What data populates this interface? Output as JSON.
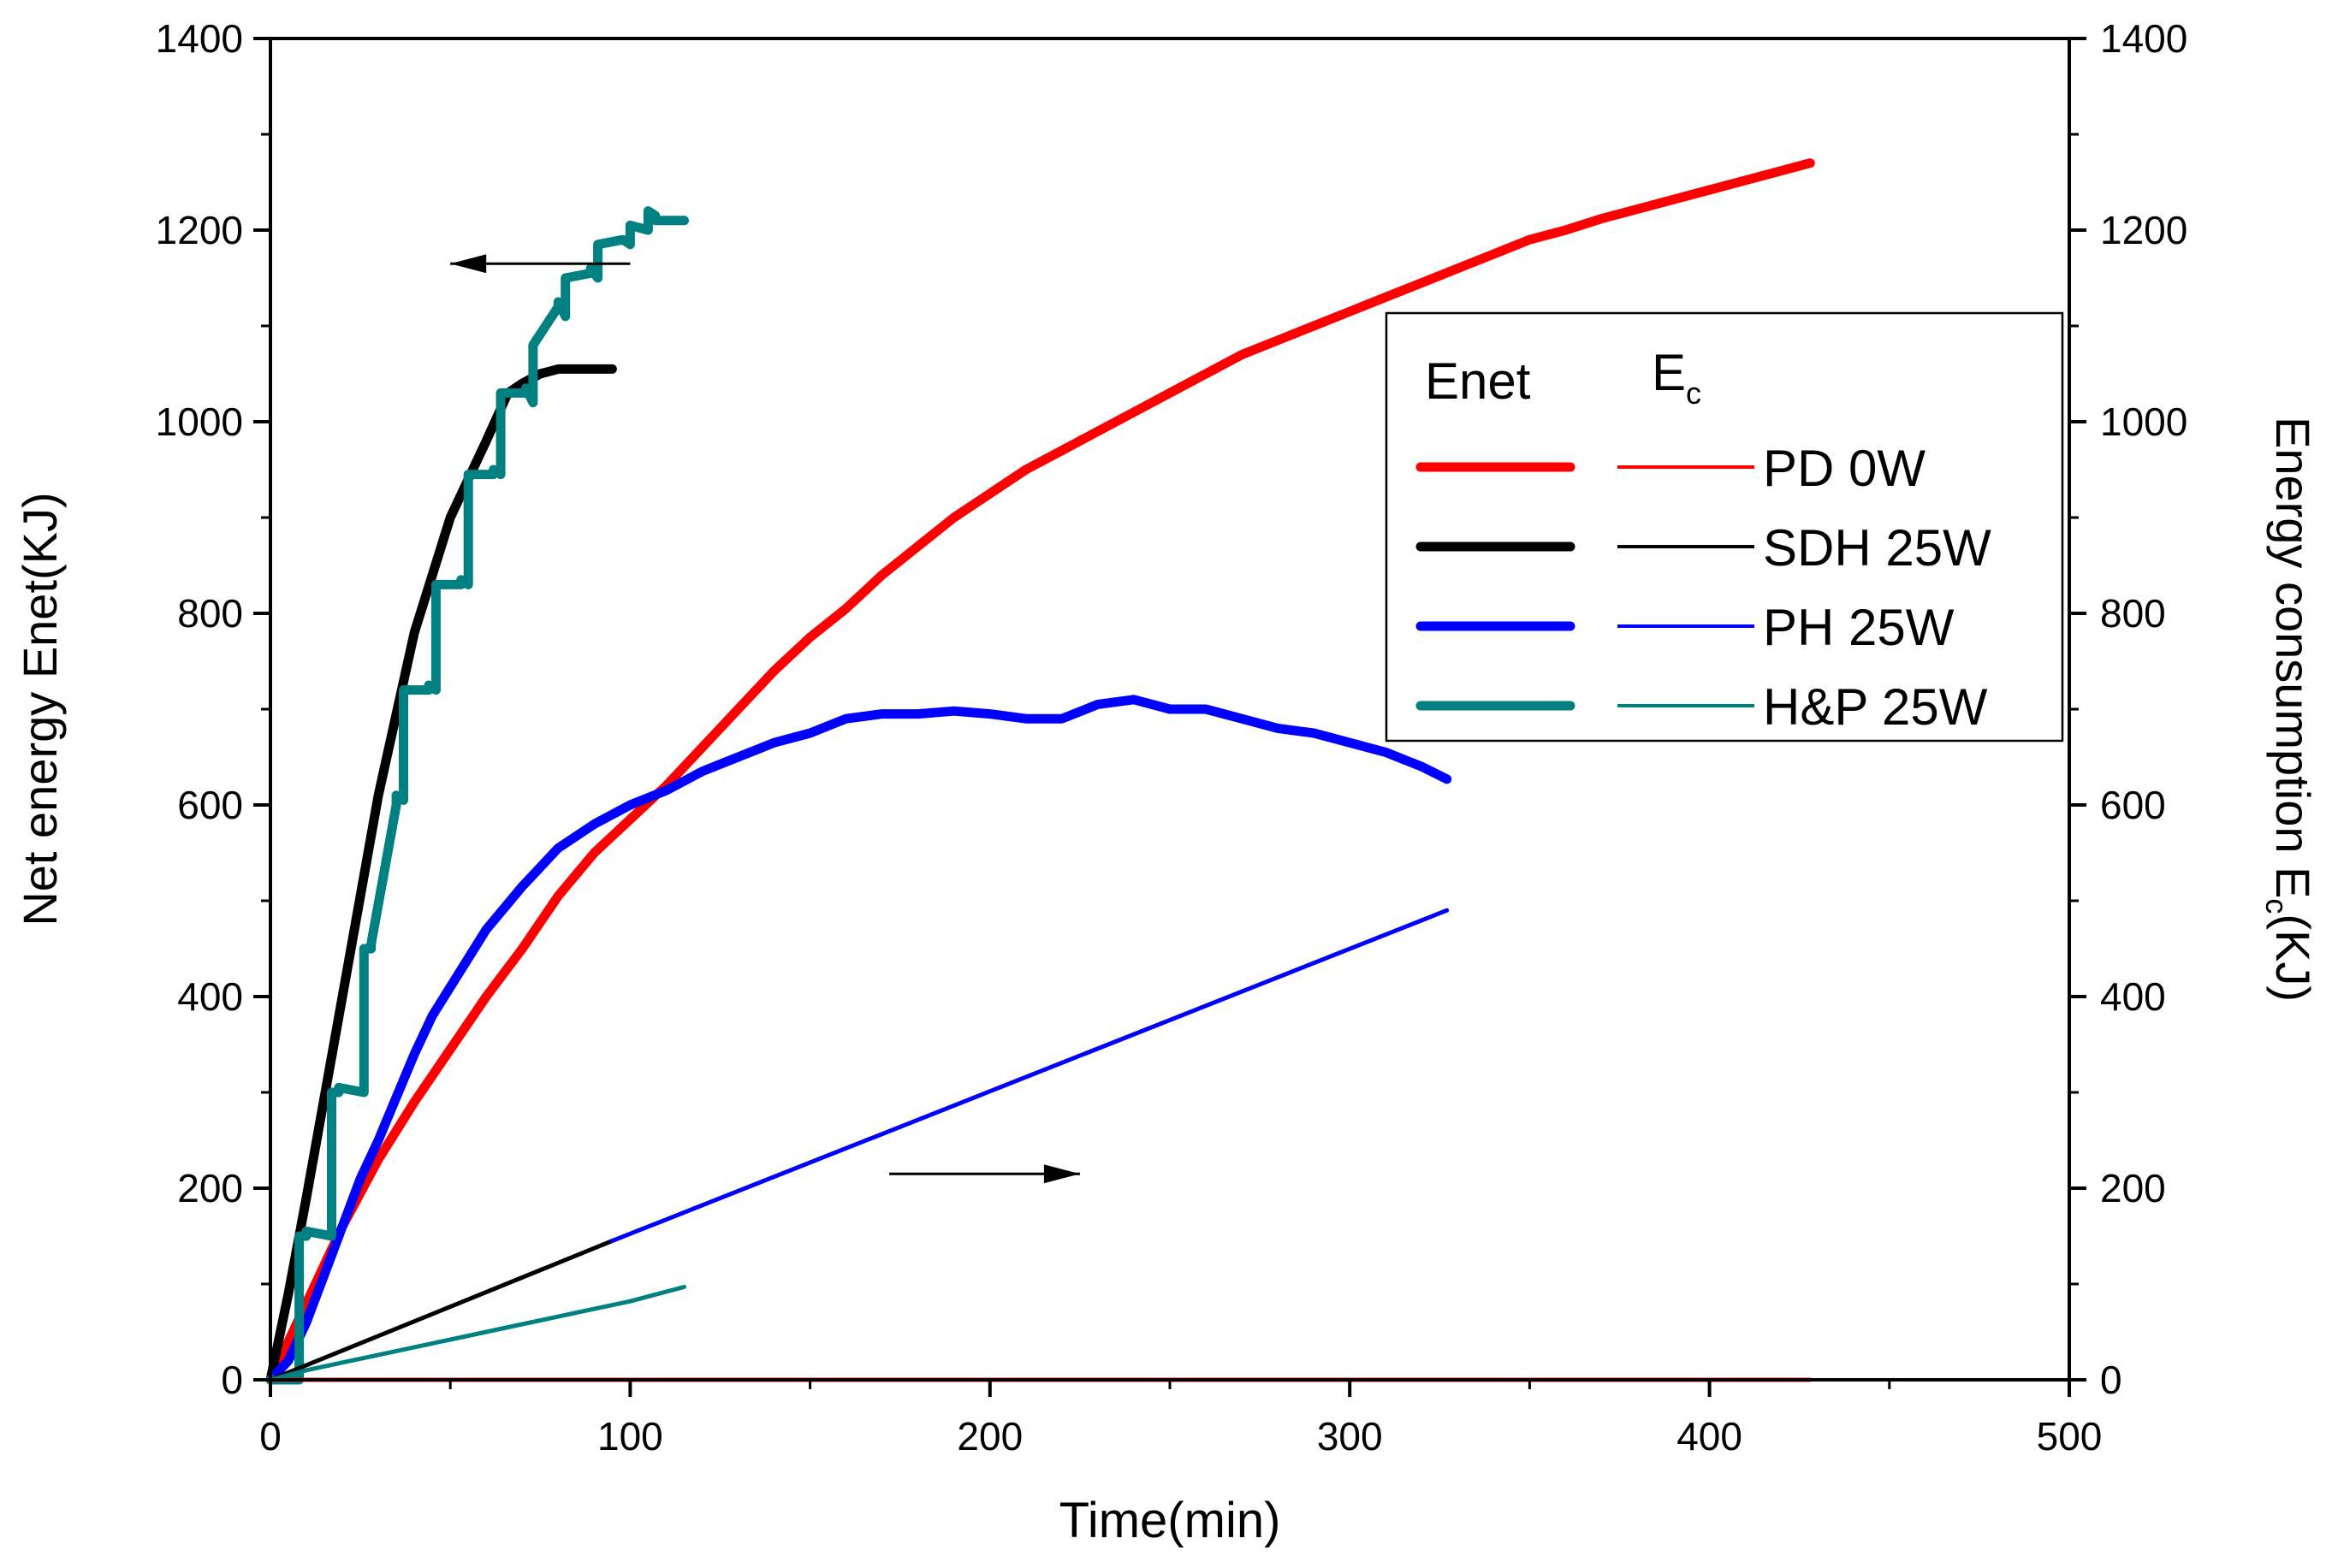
{
  "chart_data": {
    "type": "line",
    "xlabel": "Time(min)",
    "ylabel_left": "Net energy Enet(KJ)",
    "ylabel_right_prefix": "Energy consumption E",
    "ylabel_right_sub": "c",
    "ylabel_right_suffix": "(KJ)",
    "xlim": [
      0,
      500
    ],
    "ylim": [
      0,
      1400
    ],
    "x_ticks": [
      "0",
      "100",
      "200",
      "300",
      "400",
      "500"
    ],
    "y_ticks": [
      "0",
      "200",
      "400",
      "600",
      "800",
      "1000",
      "1200",
      "1400"
    ],
    "x_tick_values": [
      0,
      100,
      200,
      300,
      400,
      500
    ],
    "y_tick_values": [
      0,
      200,
      400,
      600,
      800,
      1000,
      1200,
      1400
    ],
    "legend": {
      "col1": "Enet",
      "col2_main": "E",
      "col2_sub": "c",
      "entries": [
        {
          "label": "PD 0W",
          "color": "#ff0000"
        },
        {
          "label": "SDH 25W",
          "color": "#000000"
        },
        {
          "label": "PH 25W",
          "color": "#0000ff"
        },
        {
          "label": "H&P 25W",
          "color": "#008080"
        }
      ]
    },
    "arrows": [
      {
        "direction": "left",
        "x": [
          50,
          100
        ],
        "y": 1165
      },
      {
        "direction": "right",
        "x": [
          172,
          225
        ],
        "y": 215
      }
    ],
    "series": [
      {
        "name": "PD 0W",
        "kind": "Enet",
        "color": "#ff0000",
        "x": [
          0,
          10,
          20,
          30,
          40,
          50,
          60,
          70,
          80,
          90,
          100,
          110,
          120,
          130,
          140,
          150,
          160,
          170,
          180,
          190,
          200,
          210,
          220,
          230,
          240,
          250,
          260,
          270,
          280,
          290,
          300,
          310,
          320,
          330,
          340,
          350,
          360,
          370,
          380,
          390,
          400,
          410,
          420,
          428
        ],
        "y": [
          0,
          80,
          160,
          230,
          290,
          345,
          400,
          450,
          505,
          550,
          585,
          620,
          660,
          700,
          740,
          775,
          805,
          840,
          870,
          900,
          925,
          950,
          970,
          990,
          1010,
          1030,
          1050,
          1070,
          1085,
          1100,
          1115,
          1130,
          1145,
          1160,
          1175,
          1190,
          1200,
          1212,
          1222,
          1232,
          1242,
          1252,
          1262,
          1270
        ]
      },
      {
        "name": "SDH 25W",
        "kind": "Enet",
        "color": "#000000",
        "x": [
          0,
          5,
          10,
          20,
          30,
          40,
          50,
          60,
          66,
          70,
          75,
          80,
          90,
          95
        ],
        "y": [
          0,
          90,
          190,
          400,
          610,
          780,
          900,
          980,
          1030,
          1040,
          1050,
          1055,
          1055,
          1055
        ]
      },
      {
        "name": "PH 25W",
        "kind": "Enet",
        "color": "#0000ff",
        "x": [
          0,
          5,
          10,
          15,
          20,
          25,
          30,
          35,
          40,
          45,
          50,
          55,
          60,
          70,
          80,
          90,
          100,
          110,
          120,
          130,
          140,
          150,
          160,
          170,
          180,
          190,
          200,
          210,
          220,
          230,
          240,
          250,
          260,
          270,
          280,
          290,
          300,
          310,
          320,
          327
        ],
        "y": [
          0,
          20,
          60,
          110,
          160,
          210,
          250,
          295,
          340,
          380,
          410,
          440,
          470,
          515,
          555,
          580,
          600,
          615,
          635,
          650,
          665,
          675,
          690,
          695,
          695,
          698,
          695,
          690,
          690,
          705,
          710,
          700,
          700,
          690,
          680,
          675,
          665,
          655,
          640,
          627
        ]
      },
      {
        "name": "H&P 25W",
        "kind": "Enet",
        "color": "#008080",
        "x": [
          0,
          8,
          8,
          10,
          10,
          17,
          17,
          19,
          19,
          26,
          26,
          28,
          28,
          35,
          35,
          37,
          37,
          44,
          44,
          46,
          46,
          53,
          53,
          55,
          55,
          62,
          62,
          64,
          64,
          71,
          71,
          73,
          73,
          80,
          80,
          82,
          82,
          89,
          89,
          91,
          91,
          98,
          98,
          100,
          100,
          105,
          105,
          107,
          107,
          110,
          110,
          115
        ],
        "y": [
          0,
          0,
          150,
          150,
          155,
          150,
          300,
          300,
          305,
          300,
          450,
          450,
          455,
          600,
          610,
          605,
          720,
          720,
          725,
          720,
          830,
          830,
          835,
          830,
          945,
          945,
          950,
          945,
          1030,
          1030,
          1035,
          1020,
          1080,
          1120,
          1125,
          1110,
          1150,
          1155,
          1160,
          1150,
          1185,
          1190,
          1190,
          1185,
          1205,
          1200,
          1220,
          1215,
          1210,
          1210,
          1210,
          1210
        ]
      },
      {
        "name": "PD 0W",
        "kind": "Ec",
        "color": "#ff0000",
        "x": [
          0,
          428
        ],
        "y": [
          0,
          0
        ]
      },
      {
        "name": "SDH 25W",
        "kind": "Ec",
        "color": "#000000",
        "x": [
          0,
          95
        ],
        "y": [
          0,
          145
        ]
      },
      {
        "name": "PH 25W",
        "kind": "Ec",
        "color": "#0000ff",
        "x": [
          95,
          327
        ],
        "y": [
          145,
          490
        ]
      },
      {
        "name": "H&P 25W",
        "kind": "Ec",
        "color": "#008080",
        "x": [
          0,
          10,
          20,
          30,
          40,
          50,
          60,
          70,
          80,
          90,
          100,
          110,
          115
        ],
        "y": [
          0,
          10,
          18,
          26,
          34,
          42,
          50,
          58,
          66,
          74,
          82,
          92,
          97
        ]
      }
    ]
  }
}
